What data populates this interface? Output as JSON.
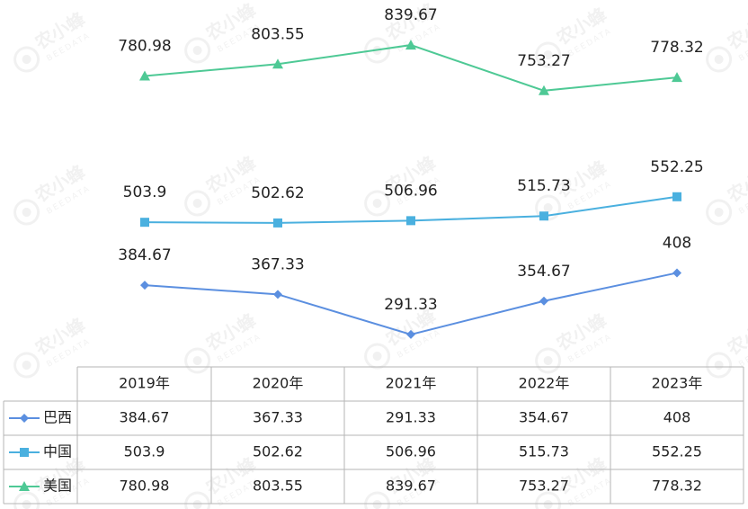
{
  "chart_data": {
    "type": "line",
    "categories": [
      "2019年",
      "2020年",
      "2021年",
      "2022年",
      "2023年"
    ],
    "series": [
      {
        "name": "巴西",
        "values": [
          384.67,
          367.33,
          291.33,
          354.67,
          408
        ],
        "color": "#5b8fe0",
        "marker": "diamond"
      },
      {
        "name": "中国",
        "values": [
          503.9,
          502.62,
          506.96,
          515.73,
          552.25
        ],
        "color": "#4ab0df",
        "marker": "square"
      },
      {
        "name": "美国",
        "values": [
          780.98,
          803.55,
          839.67,
          753.27,
          778.32
        ],
        "color": "#4ec995",
        "marker": "triangle"
      }
    ],
    "value_labels": {
      "巴西": [
        "384.67",
        "367.33",
        "291.33",
        "354.67",
        "408"
      ],
      "中国": [
        "503.9",
        "502.62",
        "506.96",
        "515.73",
        "552.25"
      ],
      "美国": [
        "780.98",
        "803.55",
        "839.67",
        "753.27",
        "778.32"
      ]
    },
    "ylim": [
      235,
      925
    ],
    "grid": false,
    "legend": "data-table-left"
  },
  "watermark": {
    "text": "农小蜂",
    "subtext": "BEEDATA"
  }
}
